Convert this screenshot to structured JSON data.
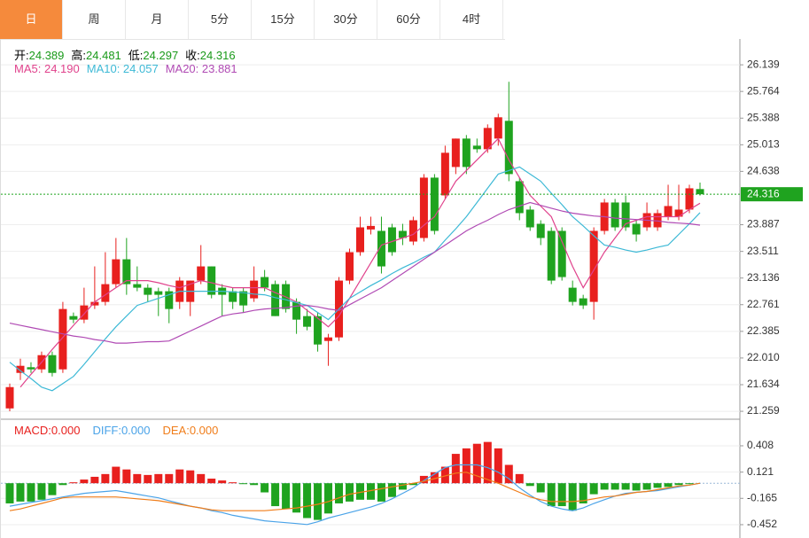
{
  "tabs": [
    "日",
    "周",
    "月",
    "5分",
    "15分",
    "30分",
    "60分",
    "4时"
  ],
  "active_tab": 0,
  "chart_data": [
    {
      "type": "candlestick",
      "legend": [
        {
          "label": "开:",
          "text": "24.389",
          "color": "#1a9a1a"
        },
        {
          "label": "高:",
          "text": "24.481",
          "color": "#1a9a1a"
        },
        {
          "label": "低:",
          "text": "24.297",
          "color": "#1a9a1a"
        },
        {
          "label": "收:",
          "text": "24.316",
          "color": "#1a9a1a"
        }
      ],
      "up_color": "#e8201e",
      "down_color": "#1fa31f",
      "open": [
        21.3,
        21.8,
        21.88,
        21.85,
        22.05,
        21.85,
        22.6,
        22.55,
        22.75,
        22.8,
        23.05,
        23.4,
        23.05,
        23.0,
        22.95,
        22.95,
        22.8,
        22.8,
        23.1,
        23.3,
        23.0,
        22.95,
        22.95,
        22.85,
        23.15,
        23.05,
        23.05,
        22.8,
        22.6,
        22.6,
        22.25,
        22.3,
        23.1,
        23.5,
        23.82,
        23.8,
        23.85,
        23.8,
        23.65,
        23.7,
        24.55,
        24.3,
        24.7,
        25.1,
        25.0,
        24.95,
        25.1,
        25.35,
        24.5,
        24.1,
        23.9,
        23.8,
        23.8,
        23.0,
        22.85,
        22.8,
        23.8,
        24.2,
        24.2,
        23.9,
        23.85,
        23.85,
        24.0,
        24.0,
        24.1,
        24.389
      ],
      "high": [
        21.65,
        22.0,
        21.95,
        22.1,
        22.1,
        22.8,
        22.65,
        23.0,
        23.3,
        23.5,
        23.7,
        23.7,
        23.3,
        23.05,
        23.0,
        23.0,
        23.15,
        23.1,
        23.6,
        23.3,
        23.05,
        23.0,
        23.0,
        23.3,
        23.25,
        23.1,
        23.1,
        22.85,
        22.7,
        22.65,
        22.35,
        23.15,
        23.55,
        24.0,
        24.0,
        24.0,
        23.9,
        23.9,
        24.0,
        24.6,
        24.6,
        25.0,
        25.1,
        25.15,
        25.1,
        25.3,
        25.45,
        25.9,
        24.55,
        24.15,
        23.95,
        23.85,
        23.85,
        23.1,
        22.9,
        23.85,
        24.25,
        24.25,
        24.3,
        23.95,
        24.2,
        24.1,
        24.45,
        24.45,
        24.45,
        24.481
      ],
      "low": [
        21.26,
        21.7,
        21.8,
        21.8,
        21.75,
        21.8,
        22.5,
        22.5,
        22.7,
        22.75,
        23.0,
        22.9,
        22.95,
        22.8,
        22.6,
        22.5,
        22.7,
        22.6,
        23.05,
        22.85,
        22.6,
        22.7,
        22.65,
        22.8,
        22.95,
        22.6,
        22.65,
        22.35,
        22.4,
        22.1,
        21.9,
        22.25,
        23.05,
        23.45,
        23.75,
        23.2,
        23.45,
        23.6,
        23.6,
        23.65,
        23.75,
        24.25,
        24.6,
        24.6,
        24.9,
        24.9,
        25.0,
        24.5,
        23.95,
        23.8,
        23.6,
        23.05,
        23.1,
        22.75,
        22.7,
        22.55,
        23.75,
        23.8,
        23.8,
        23.65,
        23.8,
        23.8,
        23.95,
        23.95,
        24.05,
        24.297
      ],
      "close": [
        21.6,
        21.9,
        21.85,
        22.05,
        21.8,
        22.7,
        22.55,
        22.75,
        22.8,
        23.05,
        23.4,
        23.05,
        23.0,
        22.9,
        22.9,
        22.7,
        23.1,
        23.1,
        23.3,
        22.9,
        22.9,
        22.8,
        22.75,
        23.1,
        23.0,
        22.6,
        22.7,
        22.55,
        22.45,
        22.2,
        22.3,
        23.1,
        23.5,
        23.85,
        23.87,
        23.3,
        23.5,
        23.7,
        23.95,
        24.55,
        23.8,
        24.9,
        25.1,
        24.7,
        24.95,
        25.25,
        25.4,
        24.6,
        24.05,
        23.85,
        23.7,
        23.1,
        23.15,
        22.8,
        22.75,
        23.8,
        24.2,
        23.85,
        23.85,
        23.75,
        24.05,
        24.05,
        24.15,
        24.1,
        24.4,
        24.316
      ],
      "series": [
        {
          "name": "MA5: ",
          "text": "24.190",
          "color": "#e0428c",
          "values": [
            null,
            21.6,
            21.78,
            21.95,
            22.13,
            22.3,
            22.47,
            22.63,
            22.8,
            22.9,
            23.0,
            23.1,
            23.1,
            23.1,
            23.07,
            23.03,
            23.0,
            23.05,
            23.1,
            23.07,
            23.03,
            23.0,
            23.0,
            23.0,
            23.0,
            22.93,
            22.87,
            22.8,
            22.68,
            22.57,
            22.45,
            22.6,
            22.85,
            23.1,
            23.35,
            23.6,
            23.65,
            23.7,
            23.75,
            23.88,
            24.0,
            24.25,
            24.5,
            24.65,
            24.8,
            24.95,
            25.1,
            24.8,
            24.55,
            24.3,
            24.15,
            24.0,
            23.65,
            23.3,
            23.0,
            23.25,
            23.5,
            23.7,
            23.9,
            23.95,
            24.0,
            24.0,
            24.0,
            24.0,
            24.1,
            24.19
          ]
        },
        {
          "name": "MA10: ",
          "text": "24.057",
          "color": "#3db9d6",
          "values": [
            21.95,
            21.83,
            21.72,
            21.6,
            21.55,
            21.65,
            21.75,
            21.92,
            22.1,
            22.28,
            22.45,
            22.6,
            22.75,
            22.8,
            22.85,
            22.9,
            22.95,
            22.95,
            22.95,
            22.95,
            22.95,
            22.94,
            22.93,
            22.91,
            22.9,
            22.86,
            22.83,
            22.79,
            22.75,
            22.65,
            22.55,
            22.7,
            22.85,
            22.94,
            23.03,
            23.11,
            23.2,
            23.28,
            23.35,
            23.43,
            23.5,
            23.67,
            23.83,
            24.0,
            24.2,
            24.4,
            24.6,
            24.65,
            24.7,
            24.6,
            24.5,
            24.33,
            24.17,
            24.0,
            23.87,
            23.73,
            23.6,
            23.57,
            23.53,
            23.5,
            23.53,
            23.57,
            23.6,
            23.75,
            23.9,
            24.057
          ]
        },
        {
          "name": "MA20: ",
          "text": "23.881",
          "color": "#b04ab4",
          "values": [
            22.5,
            22.47,
            22.44,
            22.41,
            22.38,
            22.35,
            22.32,
            22.3,
            22.27,
            22.25,
            22.22,
            22.22,
            22.23,
            22.24,
            22.24,
            22.25,
            22.32,
            22.39,
            22.46,
            22.53,
            22.6,
            22.63,
            22.65,
            22.68,
            22.7,
            22.71,
            22.72,
            22.74,
            22.75,
            22.73,
            22.7,
            22.68,
            22.76,
            22.84,
            22.92,
            23.0,
            23.1,
            23.2,
            23.3,
            23.4,
            23.5,
            23.6,
            23.7,
            23.8,
            23.88,
            23.95,
            24.03,
            24.1,
            24.15,
            24.2,
            24.16,
            24.12,
            24.08,
            24.05,
            24.03,
            24.01,
            24.0,
            23.98,
            23.97,
            23.96,
            23.95,
            23.94,
            23.92,
            23.91,
            23.9,
            23.881
          ]
        }
      ],
      "last_price": 24.316,
      "last_price_color": "#1fa31f",
      "ylim": [
        21.16,
        26.49
      ],
      "yticks": [
        26.139,
        25.764,
        25.388,
        25.013,
        24.638,
        23.887,
        23.511,
        23.136,
        22.761,
        22.385,
        {
          "value": 22.01,
          "label": "22.010"
        },
        21.634,
        21.259
      ],
      "grid": true
    },
    {
      "type": "macd",
      "legend": [
        {
          "label": "MACD:",
          "text": "0.000",
          "color": "#e8201e"
        },
        {
          "label": "DIFF:",
          "text": "0.000",
          "color": "#4aa3e8"
        },
        {
          "label": "DEA:",
          "text": "0.000",
          "color": "#f07d1a"
        }
      ],
      "up_color": "#e8201e",
      "down_color": "#1fa31f",
      "values": [
        -0.22,
        -0.2,
        -0.2,
        -0.18,
        -0.13,
        -0.02,
        0.01,
        0.04,
        0.07,
        0.1,
        0.18,
        0.15,
        0.1,
        0.09,
        0.1,
        0.1,
        0.15,
        0.14,
        0.1,
        0.05,
        0.03,
        0.01,
        -0.01,
        -0.02,
        -0.1,
        -0.25,
        -0.28,
        -0.32,
        -0.38,
        -0.4,
        -0.33,
        -0.22,
        -0.2,
        -0.18,
        -0.18,
        -0.2,
        -0.15,
        -0.07,
        -0.02,
        0.08,
        0.12,
        0.18,
        0.32,
        0.38,
        0.43,
        0.45,
        0.38,
        0.2,
        0.1,
        -0.03,
        -0.1,
        -0.25,
        -0.25,
        -0.3,
        -0.22,
        -0.12,
        -0.07,
        -0.07,
        -0.07,
        -0.08,
        -0.07,
        -0.05,
        -0.04,
        -0.02,
        -0.01,
        0
      ],
      "series": [
        {
          "color": "#4aa3e8",
          "values": [
            -0.25,
            -0.23,
            -0.21,
            -0.19,
            -0.17,
            -0.15,
            -0.13,
            -0.11,
            -0.1,
            -0.09,
            -0.08,
            -0.1,
            -0.12,
            -0.14,
            -0.16,
            -0.19,
            -0.22,
            -0.25,
            -0.27,
            -0.3,
            -0.32,
            -0.35,
            -0.37,
            -0.39,
            -0.41,
            -0.42,
            -0.43,
            -0.44,
            -0.45,
            -0.42,
            -0.38,
            -0.35,
            -0.32,
            -0.29,
            -0.26,
            -0.22,
            -0.17,
            -0.11,
            -0.05,
            0.03,
            0.1,
            0.17,
            0.2,
            0.2,
            0.2,
            0.17,
            0.12,
            0.05,
            -0.05,
            -0.13,
            -0.2,
            -0.25,
            -0.28,
            -0.3,
            -0.27,
            -0.22,
            -0.18,
            -0.14,
            -0.11,
            -0.1,
            -0.09,
            -0.08,
            -0.06,
            -0.04,
            -0.02,
            0
          ]
        },
        {
          "color": "#f07d1a",
          "values": [
            -0.3,
            -0.28,
            -0.25,
            -0.22,
            -0.19,
            -0.16,
            -0.15,
            -0.15,
            -0.15,
            -0.15,
            -0.15,
            -0.16,
            -0.17,
            -0.18,
            -0.19,
            -0.21,
            -0.23,
            -0.25,
            -0.27,
            -0.29,
            -0.3,
            -0.3,
            -0.3,
            -0.3,
            -0.3,
            -0.29,
            -0.28,
            -0.27,
            -0.25,
            -0.23,
            -0.2,
            -0.16,
            -0.12,
            -0.1,
            -0.08,
            -0.06,
            -0.04,
            -0.02,
            0.0,
            0.02,
            0.05,
            0.08,
            0.11,
            0.12,
            0.08,
            0.04,
            0.0,
            -0.05,
            -0.1,
            -0.15,
            -0.18,
            -0.2,
            -0.2,
            -0.2,
            -0.19,
            -0.17,
            -0.15,
            -0.14,
            -0.12,
            -0.1,
            -0.09,
            -0.07,
            -0.05,
            -0.03,
            -0.02,
            0
          ]
        }
      ],
      "ylim": [
        -0.578,
        0.688
      ],
      "yticks": [
        0.408,
        0.121,
        -0.165,
        -0.452
      ],
      "grid": true
    }
  ]
}
